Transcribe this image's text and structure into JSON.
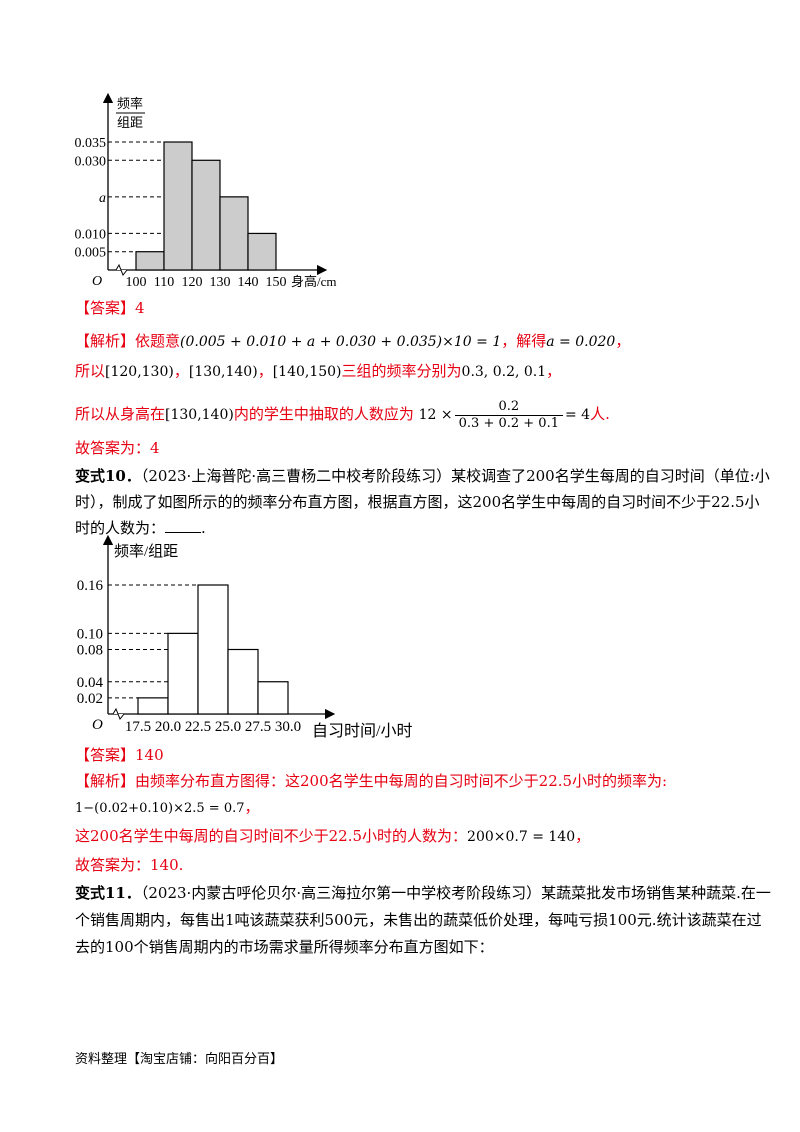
{
  "chart1": {
    "ylabel_top": "频率",
    "ylabel_bottom": "组距",
    "origin": "O",
    "xlabel": "身高/cm",
    "y_ticks": [
      "0.035",
      "0.030",
      "a",
      "0.010",
      "0.005"
    ],
    "x_ticks": [
      "100",
      "110",
      "120",
      "130",
      "140",
      "150"
    ]
  },
  "answer1": {
    "label": "【答案】",
    "value": "4"
  },
  "analysis1": {
    "label": "【解析】",
    "p1": "依题意",
    "m1": "(0.005 + 0.010 + a + 0.030 + 0.035)×10 = 1",
    "p2": "，解得",
    "m2": "a = 0.020",
    "p3": "，",
    "line2_p1": "所以",
    "line2_m1": "[120,130)",
    "line2_p2": "，",
    "line2_m2": "[130,140)",
    "line2_p3": "，",
    "line2_m3": "[140,150)",
    "line2_p4": "三组的频率分别为",
    "line2_m4": "0.3, 0.2, 0.1",
    "line2_p5": "，",
    "line3_p1": "所以从身高在",
    "line3_m1": "[130,140)",
    "line3_p2": "内的学生中抽取的人数应为",
    "line3_m2a": "12 ×",
    "line3_num": "0.2",
    "line3_den": "0.3 + 0.2 + 0.1",
    "line3_m2b": "= 4",
    "line3_p3": "人."
  },
  "final1": "故答案为：4",
  "variant10": {
    "label": "变式10．",
    "text1": "（2023·上海普陀·高三曹杨二中校考阶段练习）某校调查了200名学生每周的自习时间（单位:小",
    "text2": "时），制成了如图所示的的频率分布直方图，根据直方图，这200名学生中每周的自习时间不少于22.5小",
    "text3": "时的人数为：",
    "text3_end": "."
  },
  "chart2": {
    "ylabel": "频率/组距",
    "origin": "O",
    "xlabel": "自习时间/小时",
    "y_ticks": [
      "0.16",
      "0.10",
      "0.08",
      "0.04",
      "0.02"
    ],
    "x_ticks": [
      "17.5",
      "20.0",
      "22.5",
      "25.0",
      "27.5",
      "30.0"
    ]
  },
  "answer2": {
    "label": "【答案】",
    "value": "140"
  },
  "analysis2": {
    "label": "【解析】",
    "text1": "由频率分布直方图得：这200名学生中每周的自习时间不少于22.5小时的频率为:",
    "m1": "1−(0.02+0.10)×2.5 = 0.7",
    "m1_end": "，",
    "text2": "这200名学生中每周的自习时间不少于22.5小时的人数为：",
    "m2": "200×0.7 = 140",
    "m2_end": "，"
  },
  "final2": "故答案为：140.",
  "variant11": {
    "label": "变式11．",
    "text1": "（2023·内蒙古呼伦贝尔·高三海拉尔第一中学校考阶段练习）某蔬菜批发市场销售某种蔬菜.在一",
    "text2": "个销售周期内，每售出1吨该蔬菜获利500元，未售出的蔬菜低价处理，每吨亏损100元.统计该蔬菜在过",
    "text3": "去的100个销售周期内的市场需求量所得频率分布直方图如下："
  },
  "footer": "资料整理【淘宝店铺：向阳百分百】",
  "chart_data": [
    {
      "type": "bar",
      "categories": [
        "100-110",
        "110-120",
        "120-130",
        "130-140",
        "140-150"
      ],
      "values": [
        0.005,
        0.035,
        0.03,
        0.02,
        0.01
      ],
      "xlabel": "身高/cm",
      "ylabel": "频率/组距"
    },
    {
      "type": "bar",
      "categories": [
        "17.5-20.0",
        "20.0-22.5",
        "22.5-25.0",
        "25.0-27.5",
        "27.5-30.0"
      ],
      "values": [
        0.02,
        0.1,
        0.16,
        0.08,
        0.04
      ],
      "xlabel": "自习时间/小时",
      "ylabel": "频率/组距"
    }
  ]
}
